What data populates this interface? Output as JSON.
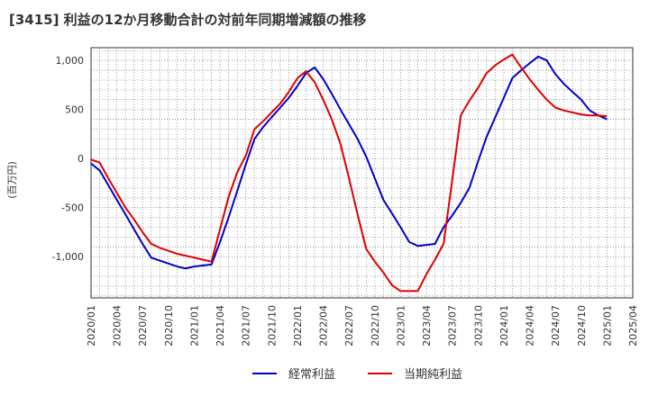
{
  "chart_data": {
    "type": "line",
    "title": "[3415]  利益の12か月移動合計の対前年同期増減額の推移",
    "ylabel": "(百万円)",
    "xlabel": "",
    "ylim": [
      -1420,
      1130
    ],
    "yticks": [
      1000,
      500,
      0,
      -500,
      -1000
    ],
    "ytick_labels": [
      "1,000",
      "500",
      "0",
      "-500",
      "-1,000"
    ],
    "xlim": [
      0,
      63
    ],
    "xticks": [
      0,
      3,
      6,
      9,
      12,
      15,
      18,
      21,
      24,
      27,
      30,
      33,
      36,
      39,
      42,
      45,
      48,
      51,
      54,
      57,
      60,
      63
    ],
    "xtick_labels": [
      "2020/01",
      "2020/04",
      "2020/07",
      "2020/10",
      "2021/01",
      "2021/04",
      "2021/07",
      "2021/10",
      "2022/01",
      "2022/04",
      "2022/07",
      "2022/10",
      "2023/01",
      "2023/04",
      "2023/07",
      "2023/10",
      "2024/01",
      "2024/04",
      "2024/07",
      "2024/10",
      "2025/01",
      "2025/04"
    ],
    "grid": true,
    "legend_position": "bottom-center",
    "series": [
      {
        "name": "経常利益",
        "color": "#0000cc",
        "x": [
          0,
          1,
          2,
          3,
          4,
          5,
          6,
          7,
          8,
          9,
          10,
          11,
          12,
          13,
          14,
          15,
          16,
          17,
          18,
          19,
          20,
          21,
          22,
          23,
          24,
          25,
          26,
          27,
          28,
          29,
          30,
          31,
          32,
          33,
          34,
          35,
          36,
          37,
          38,
          39,
          40,
          41,
          42,
          43,
          44,
          45,
          46,
          47,
          48,
          49,
          50,
          51,
          52,
          53,
          54,
          55,
          56,
          57,
          58,
          59,
          60
        ],
        "values": [
          -50,
          -120,
          -270,
          -420,
          -570,
          -720,
          -870,
          -1010,
          -1040,
          -1070,
          -1100,
          -1120,
          -1100,
          -1090,
          -1080,
          -850,
          -600,
          -330,
          -60,
          200,
          320,
          420,
          520,
          620,
          740,
          870,
          930,
          810,
          660,
          500,
          350,
          200,
          20,
          -200,
          -420,
          -560,
          -700,
          -850,
          -890,
          -880,
          -870,
          -700,
          -580,
          -450,
          -300,
          -30,
          220,
          420,
          620,
          820,
          900,
          970,
          1040,
          1000,
          860,
          760,
          680,
          600,
          490,
          440,
          400
        ]
      },
      {
        "name": "当期純利益",
        "color": "#dd0000",
        "x": [
          0,
          1,
          2,
          3,
          4,
          5,
          6,
          7,
          8,
          9,
          10,
          11,
          12,
          13,
          14,
          15,
          16,
          17,
          18,
          19,
          20,
          21,
          22,
          23,
          24,
          25,
          26,
          27,
          28,
          29,
          30,
          31,
          32,
          33,
          34,
          35,
          36,
          37,
          38,
          39,
          40,
          41,
          42,
          43,
          44,
          45,
          46,
          47,
          48,
          49,
          50,
          51,
          52,
          53,
          54,
          55,
          56,
          57,
          58,
          59,
          60
        ],
        "values": [
          -10,
          -40,
          -200,
          -350,
          -500,
          -620,
          -750,
          -870,
          -910,
          -940,
          -970,
          -990,
          -1010,
          -1030,
          -1050,
          -720,
          -390,
          -140,
          30,
          300,
          380,
          470,
          560,
          680,
          820,
          890,
          780,
          600,
          400,
          150,
          -200,
          -570,
          -920,
          -1050,
          -1160,
          -1290,
          -1350,
          -1350,
          -1350,
          -1180,
          -1030,
          -870,
          -220,
          440,
          590,
          720,
          870,
          950,
          1010,
          1060,
          930,
          810,
          700,
          600,
          520,
          490,
          470,
          450,
          440,
          440,
          430
        ]
      }
    ]
  }
}
